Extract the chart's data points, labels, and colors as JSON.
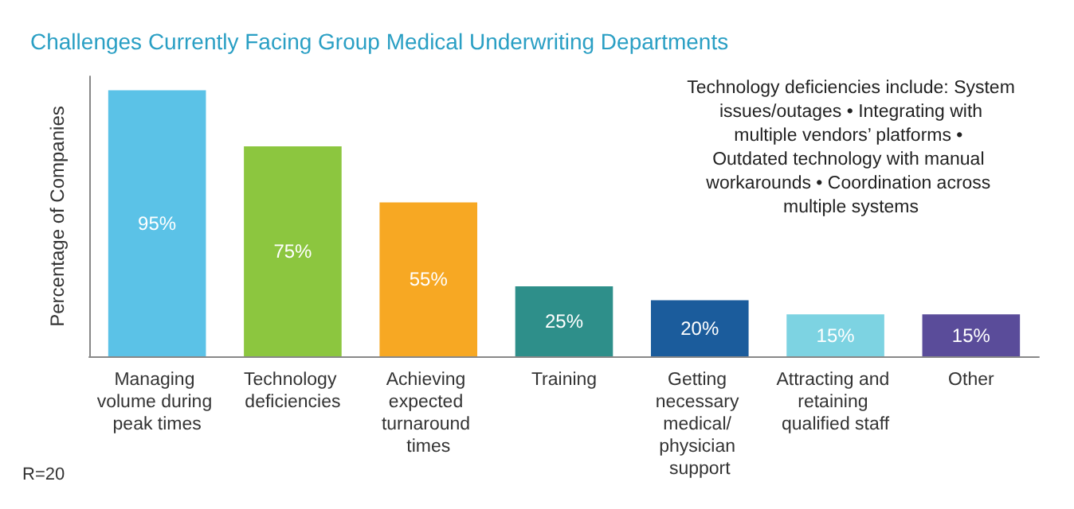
{
  "chart_data": {
    "type": "bar",
    "title": "Challenges Currently Facing Group Medical Underwriting Departments",
    "ylabel": "Percentage of Companies",
    "categories": [
      "Managing volume during peak times",
      "Technology deficiencies",
      "Achieving expected turnaround times",
      "Training",
      "Getting necessary medical/ physician support",
      "Attracting and retaining qualified staff",
      "Other"
    ],
    "values": [
      95,
      75,
      55,
      25,
      20,
      15,
      15
    ],
    "colors": [
      "#5bc2e7",
      "#8cc63f",
      "#f7a823",
      "#2e8f8a",
      "#1b5c9c",
      "#7dd3e2",
      "#5a4c9a"
    ],
    "value_labels": [
      "95%",
      "75%",
      "55%",
      "25%",
      "20%",
      "15%",
      "15%"
    ],
    "annotations": [
      "Technology deficiencies include: System issues/outages • Integrating with multiple vendors’ platforms • Outdated technology with manual workarounds • Coordination across multiple systems",
      "R=20"
    ],
    "relative": false,
    "grid": false
  }
}
